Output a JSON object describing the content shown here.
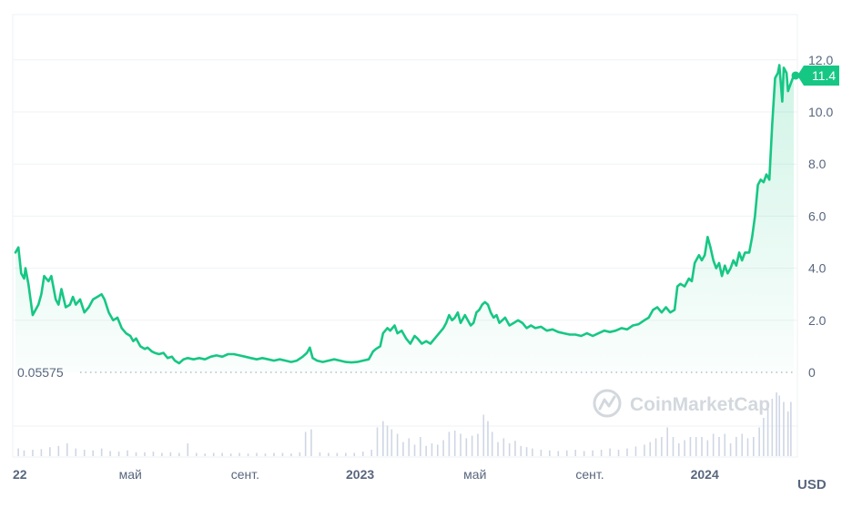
{
  "chart_data": {
    "type": "area",
    "currency": "USD",
    "x_labels": [
      {
        "t": 0.0,
        "label": "22",
        "year": true
      },
      {
        "t": 4.0,
        "label": "май",
        "year": false
      },
      {
        "t": 8.0,
        "label": "сент.",
        "year": false
      },
      {
        "t": 12.0,
        "label": "2023",
        "year": true
      },
      {
        "t": 16.0,
        "label": "май",
        "year": false
      },
      {
        "t": 20.0,
        "label": "сент.",
        "year": false
      },
      {
        "t": 24.0,
        "label": "2024",
        "year": true
      }
    ],
    "y_ticks": [
      {
        "v": 0,
        "label": "0"
      },
      {
        "v": 2,
        "label": "2.0"
      },
      {
        "v": 4,
        "label": "4.0"
      },
      {
        "v": 6,
        "label": "6.0"
      },
      {
        "v": 8,
        "label": "8.0"
      },
      {
        "v": 10,
        "label": "10.0"
      },
      {
        "v": 12,
        "label": "12.0"
      }
    ],
    "ylim": [
      0,
      12
    ],
    "baseline": {
      "value": 0,
      "label": "0.05575"
    },
    "last_price": {
      "value": 11.4,
      "label": "11.4"
    },
    "colors": {
      "line": "#16c784",
      "grid": "#eff2f5",
      "axis_text": "#58667e",
      "volume": "#cfd6e4",
      "watermark": "#d3d8de"
    },
    "grid": true,
    "watermark": "CoinMarketCap",
    "series": [
      {
        "values": [
          [
            0.0,
            4.6
          ],
          [
            0.1,
            4.8
          ],
          [
            0.2,
            3.8
          ],
          [
            0.3,
            3.6
          ],
          [
            0.35,
            4.0
          ],
          [
            0.45,
            3.4
          ],
          [
            0.6,
            2.2
          ],
          [
            0.8,
            2.6
          ],
          [
            0.9,
            3.0
          ],
          [
            1.0,
            3.7
          ],
          [
            1.15,
            3.5
          ],
          [
            1.25,
            3.7
          ],
          [
            1.4,
            2.8
          ],
          [
            1.5,
            2.6
          ],
          [
            1.6,
            3.2
          ],
          [
            1.75,
            2.5
          ],
          [
            1.9,
            2.6
          ],
          [
            2.0,
            2.9
          ],
          [
            2.1,
            2.6
          ],
          [
            2.25,
            2.8
          ],
          [
            2.4,
            2.3
          ],
          [
            2.55,
            2.5
          ],
          [
            2.7,
            2.8
          ],
          [
            2.85,
            2.9
          ],
          [
            3.0,
            3.0
          ],
          [
            3.1,
            2.8
          ],
          [
            3.25,
            2.3
          ],
          [
            3.4,
            2.0
          ],
          [
            3.55,
            2.1
          ],
          [
            3.7,
            1.7
          ],
          [
            3.85,
            1.5
          ],
          [
            4.0,
            1.4
          ],
          [
            4.1,
            1.2
          ],
          [
            4.2,
            1.3
          ],
          [
            4.35,
            1.0
          ],
          [
            4.5,
            0.9
          ],
          [
            4.6,
            0.95
          ],
          [
            4.75,
            0.8
          ],
          [
            4.85,
            0.75
          ],
          [
            5.0,
            0.7
          ],
          [
            5.15,
            0.75
          ],
          [
            5.3,
            0.55
          ],
          [
            5.45,
            0.6
          ],
          [
            5.55,
            0.45
          ],
          [
            5.7,
            0.35
          ],
          [
            5.85,
            0.5
          ],
          [
            6.0,
            0.55
          ],
          [
            6.2,
            0.5
          ],
          [
            6.4,
            0.55
          ],
          [
            6.6,
            0.5
          ],
          [
            6.8,
            0.6
          ],
          [
            7.0,
            0.65
          ],
          [
            7.2,
            0.6
          ],
          [
            7.4,
            0.7
          ],
          [
            7.6,
            0.7
          ],
          [
            7.8,
            0.65
          ],
          [
            8.0,
            0.6
          ],
          [
            8.2,
            0.55
          ],
          [
            8.4,
            0.5
          ],
          [
            8.6,
            0.55
          ],
          [
            8.8,
            0.5
          ],
          [
            9.0,
            0.45
          ],
          [
            9.2,
            0.5
          ],
          [
            9.4,
            0.45
          ],
          [
            9.6,
            0.4
          ],
          [
            9.8,
            0.45
          ],
          [
            10.0,
            0.6
          ],
          [
            10.15,
            0.75
          ],
          [
            10.25,
            0.95
          ],
          [
            10.35,
            0.55
          ],
          [
            10.5,
            0.45
          ],
          [
            10.7,
            0.4
          ],
          [
            10.9,
            0.45
          ],
          [
            11.1,
            0.5
          ],
          [
            11.3,
            0.45
          ],
          [
            11.5,
            0.4
          ],
          [
            11.7,
            0.38
          ],
          [
            11.9,
            0.4
          ],
          [
            12.1,
            0.45
          ],
          [
            12.3,
            0.5
          ],
          [
            12.45,
            0.8
          ],
          [
            12.55,
            0.9
          ],
          [
            12.7,
            1.0
          ],
          [
            12.8,
            1.5
          ],
          [
            12.95,
            1.7
          ],
          [
            13.05,
            1.6
          ],
          [
            13.2,
            1.8
          ],
          [
            13.3,
            1.5
          ],
          [
            13.45,
            1.6
          ],
          [
            13.6,
            1.3
          ],
          [
            13.75,
            1.1
          ],
          [
            13.9,
            1.4
          ],
          [
            14.0,
            1.3
          ],
          [
            14.15,
            1.1
          ],
          [
            14.3,
            1.2
          ],
          [
            14.45,
            1.1
          ],
          [
            14.6,
            1.3
          ],
          [
            14.75,
            1.5
          ],
          [
            14.9,
            1.7
          ],
          [
            15.0,
            1.9
          ],
          [
            15.1,
            2.2
          ],
          [
            15.2,
            2.0
          ],
          [
            15.3,
            2.1
          ],
          [
            15.4,
            2.3
          ],
          [
            15.5,
            1.9
          ],
          [
            15.65,
            2.2
          ],
          [
            15.75,
            2.0
          ],
          [
            15.85,
            1.8
          ],
          [
            15.95,
            1.9
          ],
          [
            16.05,
            2.3
          ],
          [
            16.15,
            2.4
          ],
          [
            16.25,
            2.6
          ],
          [
            16.35,
            2.7
          ],
          [
            16.45,
            2.6
          ],
          [
            16.55,
            2.3
          ],
          [
            16.65,
            2.1
          ],
          [
            16.75,
            2.2
          ],
          [
            16.85,
            1.9
          ],
          [
            16.95,
            2.0
          ],
          [
            17.05,
            2.1
          ],
          [
            17.2,
            1.8
          ],
          [
            17.35,
            1.9
          ],
          [
            17.5,
            2.0
          ],
          [
            17.65,
            1.9
          ],
          [
            17.8,
            1.7
          ],
          [
            17.95,
            1.8
          ],
          [
            18.1,
            1.7
          ],
          [
            18.3,
            1.75
          ],
          [
            18.5,
            1.6
          ],
          [
            18.7,
            1.65
          ],
          [
            18.9,
            1.55
          ],
          [
            19.1,
            1.5
          ],
          [
            19.3,
            1.45
          ],
          [
            19.5,
            1.45
          ],
          [
            19.7,
            1.4
          ],
          [
            19.9,
            1.5
          ],
          [
            20.1,
            1.4
          ],
          [
            20.3,
            1.5
          ],
          [
            20.5,
            1.6
          ],
          [
            20.7,
            1.55
          ],
          [
            20.9,
            1.6
          ],
          [
            21.1,
            1.7
          ],
          [
            21.3,
            1.65
          ],
          [
            21.5,
            1.8
          ],
          [
            21.7,
            1.85
          ],
          [
            21.9,
            2.0
          ],
          [
            22.05,
            2.1
          ],
          [
            22.2,
            2.4
          ],
          [
            22.35,
            2.5
          ],
          [
            22.5,
            2.3
          ],
          [
            22.65,
            2.5
          ],
          [
            22.8,
            2.3
          ],
          [
            22.95,
            2.4
          ],
          [
            23.05,
            3.3
          ],
          [
            23.15,
            3.4
          ],
          [
            23.3,
            3.3
          ],
          [
            23.45,
            3.6
          ],
          [
            23.55,
            3.5
          ],
          [
            23.65,
            4.2
          ],
          [
            23.8,
            4.5
          ],
          [
            23.9,
            4.3
          ],
          [
            24.0,
            4.5
          ],
          [
            24.1,
            5.2
          ],
          [
            24.2,
            4.8
          ],
          [
            24.3,
            4.3
          ],
          [
            24.4,
            4.0
          ],
          [
            24.5,
            4.2
          ],
          [
            24.6,
            3.7
          ],
          [
            24.7,
            4.1
          ],
          [
            24.8,
            3.8
          ],
          [
            24.9,
            4.0
          ],
          [
            25.0,
            4.3
          ],
          [
            25.1,
            4.1
          ],
          [
            25.2,
            4.6
          ],
          [
            25.3,
            4.3
          ],
          [
            25.4,
            4.6
          ],
          [
            25.55,
            4.6
          ],
          [
            25.65,
            5.2
          ],
          [
            25.75,
            6.0
          ],
          [
            25.85,
            7.2
          ],
          [
            25.95,
            7.4
          ],
          [
            26.05,
            7.3
          ],
          [
            26.15,
            7.6
          ],
          [
            26.25,
            7.4
          ],
          [
            26.35,
            9.5
          ],
          [
            26.45,
            11.3
          ],
          [
            26.55,
            11.5
          ],
          [
            26.6,
            11.8
          ],
          [
            26.7,
            10.4
          ],
          [
            26.75,
            11.7
          ],
          [
            26.85,
            11.5
          ],
          [
            26.9,
            10.8
          ],
          [
            27.0,
            11.1
          ],
          [
            27.1,
            11.4
          ]
        ]
      }
    ],
    "volume": [
      [
        0.1,
        0.12
      ],
      [
        0.3,
        0.09
      ],
      [
        0.6,
        0.1
      ],
      [
        0.9,
        0.11
      ],
      [
        1.2,
        0.14
      ],
      [
        1.5,
        0.16
      ],
      [
        1.8,
        0.2
      ],
      [
        2.1,
        0.12
      ],
      [
        2.4,
        0.1
      ],
      [
        2.7,
        0.09
      ],
      [
        3.0,
        0.12
      ],
      [
        3.3,
        0.08
      ],
      [
        3.6,
        0.07
      ],
      [
        3.9,
        0.09
      ],
      [
        4.2,
        0.06
      ],
      [
        4.5,
        0.06
      ],
      [
        4.8,
        0.07
      ],
      [
        5.1,
        0.05
      ],
      [
        5.4,
        0.06
      ],
      [
        5.7,
        0.05
      ],
      [
        6.0,
        0.2
      ],
      [
        6.3,
        0.05
      ],
      [
        6.6,
        0.04
      ],
      [
        6.9,
        0.05
      ],
      [
        7.2,
        0.05
      ],
      [
        7.5,
        0.04
      ],
      [
        7.8,
        0.05
      ],
      [
        8.1,
        0.04
      ],
      [
        8.4,
        0.05
      ],
      [
        8.7,
        0.04
      ],
      [
        9.0,
        0.05
      ],
      [
        9.3,
        0.05
      ],
      [
        9.6,
        0.04
      ],
      [
        9.9,
        0.06
      ],
      [
        10.1,
        0.38
      ],
      [
        10.3,
        0.42
      ],
      [
        10.6,
        0.06
      ],
      [
        10.9,
        0.05
      ],
      [
        11.2,
        0.05
      ],
      [
        11.5,
        0.05
      ],
      [
        11.8,
        0.05
      ],
      [
        12.1,
        0.07
      ],
      [
        12.4,
        0.1
      ],
      [
        12.6,
        0.45
      ],
      [
        12.8,
        0.55
      ],
      [
        12.95,
        0.48
      ],
      [
        13.1,
        0.42
      ],
      [
        13.3,
        0.35
      ],
      [
        13.5,
        0.22
      ],
      [
        13.7,
        0.28
      ],
      [
        13.9,
        0.18
      ],
      [
        14.1,
        0.3
      ],
      [
        14.3,
        0.16
      ],
      [
        14.5,
        0.2
      ],
      [
        14.7,
        0.18
      ],
      [
        14.9,
        0.25
      ],
      [
        15.1,
        0.38
      ],
      [
        15.3,
        0.4
      ],
      [
        15.5,
        0.35
      ],
      [
        15.7,
        0.28
      ],
      [
        15.9,
        0.32
      ],
      [
        16.1,
        0.35
      ],
      [
        16.3,
        0.65
      ],
      [
        16.45,
        0.55
      ],
      [
        16.6,
        0.38
      ],
      [
        16.8,
        0.22
      ],
      [
        17.0,
        0.28
      ],
      [
        17.2,
        0.2
      ],
      [
        17.4,
        0.24
      ],
      [
        17.6,
        0.16
      ],
      [
        17.8,
        0.14
      ],
      [
        18.0,
        0.12
      ],
      [
        18.3,
        0.1
      ],
      [
        18.6,
        0.09
      ],
      [
        18.9,
        0.08
      ],
      [
        19.2,
        0.09
      ],
      [
        19.5,
        0.1
      ],
      [
        19.8,
        0.08
      ],
      [
        20.1,
        0.09
      ],
      [
        20.4,
        0.1
      ],
      [
        20.7,
        0.12
      ],
      [
        21.0,
        0.1
      ],
      [
        21.3,
        0.12
      ],
      [
        21.6,
        0.15
      ],
      [
        21.9,
        0.18
      ],
      [
        22.1,
        0.22
      ],
      [
        22.3,
        0.28
      ],
      [
        22.5,
        0.3
      ],
      [
        22.7,
        0.45
      ],
      [
        22.9,
        0.3
      ],
      [
        23.1,
        0.2
      ],
      [
        23.3,
        0.25
      ],
      [
        23.5,
        0.3
      ],
      [
        23.7,
        0.3
      ],
      [
        23.9,
        0.3
      ],
      [
        24.1,
        0.25
      ],
      [
        24.3,
        0.35
      ],
      [
        24.5,
        0.3
      ],
      [
        24.7,
        0.35
      ],
      [
        24.9,
        0.2
      ],
      [
        25.1,
        0.3
      ],
      [
        25.3,
        0.35
      ],
      [
        25.5,
        0.28
      ],
      [
        25.7,
        0.3
      ],
      [
        25.9,
        0.45
      ],
      [
        26.05,
        0.6
      ],
      [
        26.2,
        0.8
      ],
      [
        26.35,
        0.9
      ],
      [
        26.5,
        1.0
      ],
      [
        26.6,
        0.95
      ],
      [
        26.75,
        0.85
      ],
      [
        26.9,
        0.7
      ],
      [
        27.0,
        0.85
      ]
    ]
  }
}
